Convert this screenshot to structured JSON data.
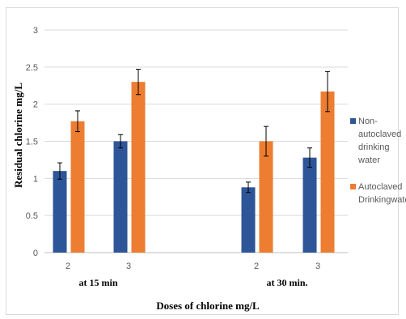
{
  "chart_data": {
    "type": "bar",
    "title": "",
    "xlabel": "Doses of chlorine mg/L",
    "ylabel": "Residual chlorine mg/L",
    "ylim": [
      0,
      3
    ],
    "yticks": [
      "0",
      "0.5",
      "1",
      "1.5",
      "2",
      "2.5",
      "3"
    ],
    "grid": true,
    "legend_position": "right",
    "groups": [
      {
        "label": "at 15 min",
        "categories": [
          "2",
          "3"
        ]
      },
      {
        "label": "at 30 min.",
        "categories": [
          "2",
          "3"
        ]
      }
    ],
    "categories": [
      "2",
      "3",
      "2",
      "3"
    ],
    "series": [
      {
        "name": "Non-autoclaved drinking water",
        "legend_lines": [
          "Non-",
          "autoclaved",
          "drinking",
          "water"
        ],
        "color": "#2e5597",
        "values": [
          1.1,
          1.5,
          0.88,
          1.28
        ],
        "errors": [
          0.11,
          0.09,
          0.07,
          0.13
        ]
      },
      {
        "name": "Autoclaved Drinkingwater",
        "legend_lines": [
          "Autoclaved",
          "Drinkingwater"
        ],
        "color": "#ed7d31",
        "values": [
          1.77,
          2.3,
          1.5,
          2.17
        ],
        "errors": [
          0.14,
          0.17,
          0.2,
          0.27
        ]
      }
    ]
  }
}
